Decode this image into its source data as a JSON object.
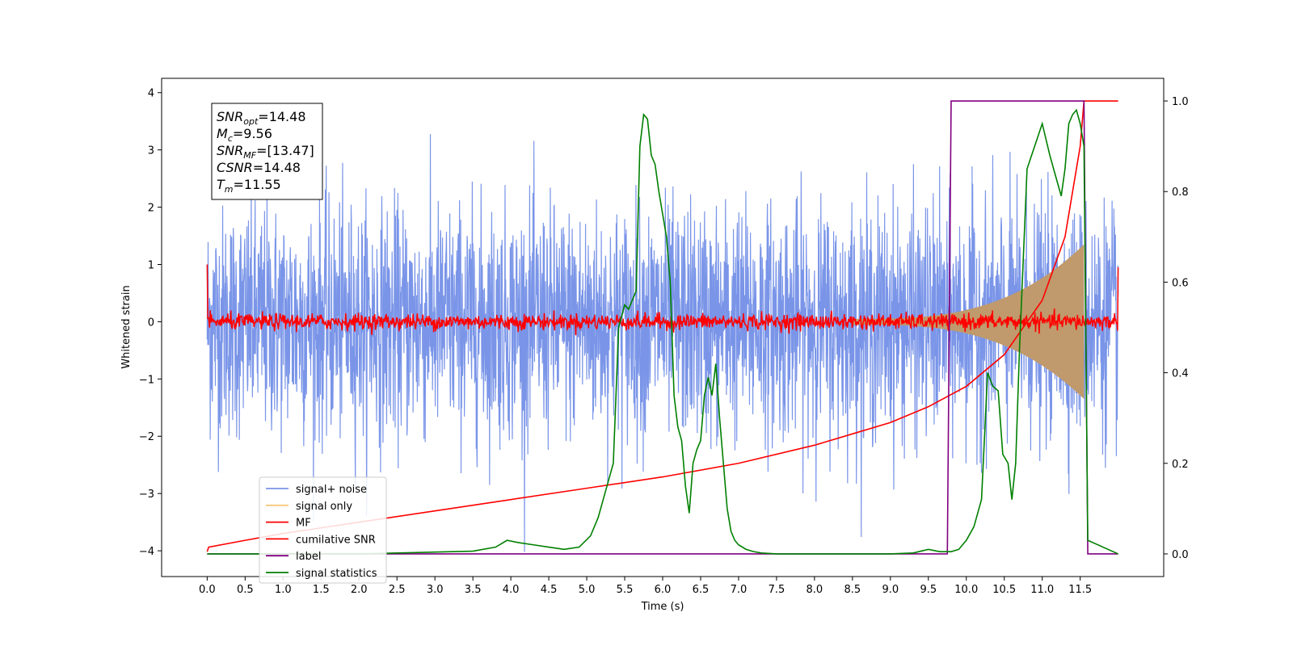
{
  "chart_data": {
    "type": "line",
    "xlabel": "Time (s)",
    "ylabel": "Whitened strain",
    "xlim": [
      -0.6,
      12.6
    ],
    "ylim": [
      -4.45,
      4.25
    ],
    "y2lim": [
      -0.05,
      1.05
    ],
    "x_ticks": [
      "0.0",
      "0.5",
      "1.0",
      "1.5",
      "2.0",
      "2.5",
      "3.0",
      "3.5",
      "4.0",
      "4.5",
      "5.0",
      "5.5",
      "6.0",
      "6.5",
      "7.0",
      "7.5",
      "8.0",
      "8.5",
      "9.0",
      "9.5",
      "10.0",
      "10.5",
      "11.0",
      "11.5"
    ],
    "y_ticks": [
      "−4",
      "−3",
      "−2",
      "−1",
      "0",
      "1",
      "2",
      "3",
      "4"
    ],
    "y2_ticks": [
      "0.0",
      "0.2",
      "0.4",
      "0.6",
      "0.8",
      "1.0"
    ],
    "annotation": {
      "lines": [
        {
          "sym": "SNR",
          "sub": "opt",
          "val": "=14.48"
        },
        {
          "sym": "M",
          "sub": "c",
          "val": "=9.56"
        },
        {
          "sym": "SNR",
          "sub": "MF",
          "val": "=[13.47]"
        },
        {
          "sym": "CSNR",
          "sub": "",
          "val": "=14.48"
        },
        {
          "sym": "T",
          "sub": "m",
          "val": "=11.55"
        }
      ]
    },
    "series": [
      {
        "name": "signal+ noise",
        "color": "#7a95e8",
        "axis": "left",
        "noise_std": 1.0,
        "t_range": [
          0.0,
          12.0
        ]
      },
      {
        "name": "signal only",
        "color": "#f5c97a",
        "axis": "left",
        "envelope": {
          "t_start": 8.5,
          "t_peak": 11.55,
          "peak_amp": 1.3
        }
      },
      {
        "name": "MF",
        "color": "#ff0000",
        "axis": "left",
        "noise_std": 0.07
      },
      {
        "name": "cumilative SNR",
        "color": "#ff0000",
        "axis": "right",
        "x": [
          0.0,
          0.02,
          0.5,
          1.0,
          2.0,
          3.0,
          4.0,
          5.0,
          6.0,
          7.0,
          8.0,
          8.5,
          9.0,
          9.5,
          10.0,
          10.5,
          11.0,
          11.3,
          11.5,
          11.55,
          12.0
        ],
        "y": [
          0.005,
          0.015,
          0.03,
          0.045,
          0.07,
          0.095,
          0.12,
          0.145,
          0.17,
          0.2,
          0.24,
          0.265,
          0.29,
          0.325,
          0.37,
          0.44,
          0.56,
          0.7,
          0.9,
          1.0,
          1.0
        ]
      },
      {
        "name": "label",
        "color": "#800080",
        "axis": "right",
        "x": [
          0.0,
          9.75,
          9.8,
          11.55,
          11.6,
          12.0
        ],
        "y": [
          0.0,
          0.0,
          1.0,
          1.0,
          0.0,
          0.0
        ]
      },
      {
        "name": "signal statistics",
        "color": "#008000",
        "axis": "right",
        "x": [
          0.0,
          0.5,
          1.0,
          1.5,
          2.0,
          2.5,
          3.0,
          3.5,
          3.8,
          3.95,
          4.1,
          4.3,
          4.5,
          4.7,
          4.9,
          5.05,
          5.15,
          5.25,
          5.35,
          5.42,
          5.5,
          5.55,
          5.6,
          5.65,
          5.7,
          5.75,
          5.8,
          5.85,
          5.9,
          5.95,
          6.0,
          6.05,
          6.1,
          6.15,
          6.2,
          6.25,
          6.3,
          6.35,
          6.4,
          6.45,
          6.5,
          6.55,
          6.6,
          6.65,
          6.7,
          6.75,
          6.8,
          6.85,
          6.9,
          6.95,
          7.0,
          7.1,
          7.2,
          7.3,
          7.5,
          8.0,
          8.5,
          9.0,
          9.3,
          9.5,
          9.65,
          9.8,
          9.9,
          10.0,
          10.1,
          10.2,
          10.28,
          10.35,
          10.42,
          10.48,
          10.55,
          10.6,
          10.65,
          10.7,
          10.8,
          10.9,
          11.0,
          11.1,
          11.2,
          11.25,
          11.3,
          11.35,
          11.4,
          11.45,
          11.5,
          11.55,
          11.6,
          12.0
        ],
        "y": [
          0.0,
          0.0,
          0.0,
          0.0,
          0.0,
          0.002,
          0.004,
          0.006,
          0.015,
          0.03,
          0.025,
          0.02,
          0.015,
          0.01,
          0.015,
          0.04,
          0.08,
          0.14,
          0.2,
          0.5,
          0.55,
          0.54,
          0.56,
          0.58,
          0.9,
          0.97,
          0.96,
          0.88,
          0.86,
          0.8,
          0.75,
          0.7,
          0.6,
          0.35,
          0.28,
          0.25,
          0.15,
          0.09,
          0.2,
          0.23,
          0.25,
          0.35,
          0.39,
          0.35,
          0.42,
          0.3,
          0.2,
          0.1,
          0.05,
          0.03,
          0.02,
          0.01,
          0.005,
          0.002,
          0.0,
          0.0,
          0.0,
          0.0,
          0.002,
          0.01,
          0.005,
          0.005,
          0.01,
          0.03,
          0.06,
          0.12,
          0.4,
          0.37,
          0.36,
          0.22,
          0.2,
          0.12,
          0.2,
          0.45,
          0.85,
          0.9,
          0.95,
          0.88,
          0.82,
          0.79,
          0.85,
          0.95,
          0.97,
          0.98,
          0.95,
          0.9,
          0.03,
          0.0
        ]
      }
    ]
  }
}
